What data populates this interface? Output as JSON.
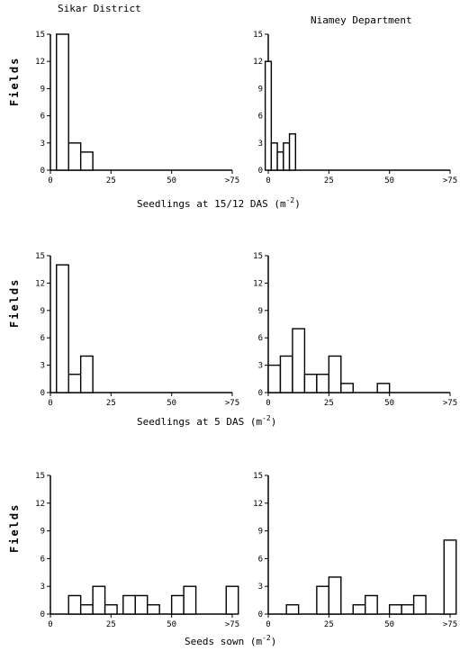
{
  "column_titles": [
    "Sikar District",
    "Niamey Department"
  ],
  "row_captions": [
    "Seedlings at 15/12 DAS (m",
    "Seedlings at 5 DAS (m",
    "Seeds sown (m"
  ],
  "caption_exp": "-2",
  "caption_close": ")",
  "ylabel": "Fields",
  "chart_data": [
    {
      "type": "bar",
      "panel": "Sikar District, seedlings at 15/12 DAS",
      "x": [
        5,
        10,
        15
      ],
      "values": [
        15,
        3,
        2
      ],
      "bin_width": 5,
      "xlim": [
        0,
        75
      ],
      "ylim": [
        0,
        15
      ],
      "xticks": [
        "0",
        "25",
        "50",
        ">75"
      ],
      "yticks": [
        "0",
        "3",
        "6",
        "9",
        "12",
        "15"
      ]
    },
    {
      "type": "bar",
      "panel": "Niamey Department, seedlings at 15/12 DAS",
      "x": [
        0,
        2.5,
        5,
        7.5,
        10
      ],
      "values": [
        12,
        3,
        2,
        3,
        4
      ],
      "bin_width": 2.5,
      "xlim": [
        0,
        75
      ],
      "ylim": [
        0,
        15
      ],
      "xticks": [
        "0",
        "25",
        "50",
        ">75"
      ],
      "yticks": [
        "0",
        "3",
        "6",
        "9",
        "12",
        "15"
      ]
    },
    {
      "type": "bar",
      "panel": "Sikar District, seedlings at 5 DAS",
      "x": [
        5,
        10,
        15
      ],
      "values": [
        14,
        2,
        4
      ],
      "bin_width": 5,
      "xlim": [
        0,
        75
      ],
      "ylim": [
        0,
        15
      ],
      "xticks": [
        "0",
        "25",
        "50",
        ">75"
      ],
      "yticks": [
        "0",
        "3",
        "6",
        "9",
        "12",
        "15"
      ]
    },
    {
      "type": "bar",
      "panel": "Niamey Department, seedlings at 5 DAS",
      "x": [
        2.5,
        7.5,
        12.5,
        17.5,
        22.5,
        27.5,
        32.5,
        47.5
      ],
      "values": [
        3,
        4,
        7,
        2,
        2,
        4,
        1,
        1
      ],
      "bin_width": 5,
      "xlim": [
        0,
        75
      ],
      "ylim": [
        0,
        15
      ],
      "xticks": [
        "0",
        "25",
        "50",
        ">75"
      ],
      "yticks": [
        "0",
        "3",
        "6",
        "9",
        "12",
        "15"
      ]
    },
    {
      "type": "bar",
      "panel": "Sikar District, seeds sown",
      "x": [
        10,
        15,
        20,
        25,
        32.5,
        37.5,
        42.5,
        52.5,
        57.5,
        75
      ],
      "values": [
        2,
        1,
        3,
        1,
        2,
        2,
        1,
        2,
        3,
        3
      ],
      "bin_width": 5,
      "xlim": [
        0,
        75
      ],
      "ylim": [
        0,
        15
      ],
      "xticks": [
        "0",
        "25",
        "50",
        ">75"
      ],
      "yticks": [
        "0",
        "3",
        "6",
        "9",
        "12",
        "15"
      ]
    },
    {
      "type": "bar",
      "panel": "Niamey Department, seeds sown",
      "x": [
        10,
        22.5,
        27.5,
        37.5,
        42.5,
        52.5,
        57.5,
        62.5,
        75
      ],
      "values": [
        1,
        3,
        4,
        1,
        2,
        1,
        1,
        2,
        8
      ],
      "bin_width": 5,
      "xlim": [
        0,
        75
      ],
      "ylim": [
        0,
        15
      ],
      "xticks": [
        "0",
        "25",
        "50",
        ">75"
      ],
      "yticks": [
        "0",
        "3",
        "6",
        "9",
        "12",
        "15"
      ]
    }
  ]
}
